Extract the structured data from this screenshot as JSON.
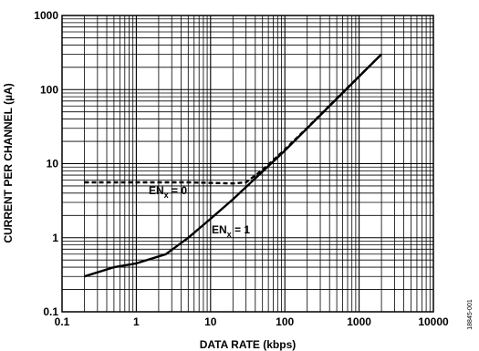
{
  "chart_data": {
    "type": "line",
    "x_scale": "log",
    "y_scale": "log",
    "xlim": [
      0.1,
      10000
    ],
    "ylim": [
      0.1,
      1000
    ],
    "xlabel": "DATA RATE (kbps)",
    "ylabel": "CURRENT PER CHANNEL (µA)",
    "x_ticks": [
      "0.1",
      "1",
      "10",
      "100",
      "1000",
      "10000"
    ],
    "y_ticks": [
      "0.1",
      "1",
      "10",
      "100",
      "1000"
    ],
    "grid": true,
    "series": [
      {
        "name": "ENx = 1",
        "style": "solid",
        "x": [
          0.2,
          0.5,
          1,
          2.5,
          5,
          10,
          20,
          50,
          100,
          200,
          500,
          1000,
          2000
        ],
        "y": [
          0.3,
          0.4,
          0.45,
          0.6,
          1.0,
          1.8,
          3.3,
          7.8,
          15,
          30,
          75,
          150,
          300
        ]
      },
      {
        "name": "ENx = 0",
        "style": "dashed",
        "x": [
          0.2,
          1,
          5,
          10,
          20,
          30,
          50,
          100,
          200,
          500,
          1000,
          2000
        ],
        "y": [
          5.6,
          5.6,
          5.6,
          5.5,
          5.4,
          5.6,
          8.2,
          15.5,
          30.5,
          76,
          151,
          300
        ]
      }
    ],
    "annotations": [
      {
        "main": "EN",
        "sub": "x",
        "rest": " = 0"
      },
      {
        "main": "EN",
        "sub": "x",
        "rest": " = 1"
      }
    ]
  },
  "figure_code": "18845-001"
}
